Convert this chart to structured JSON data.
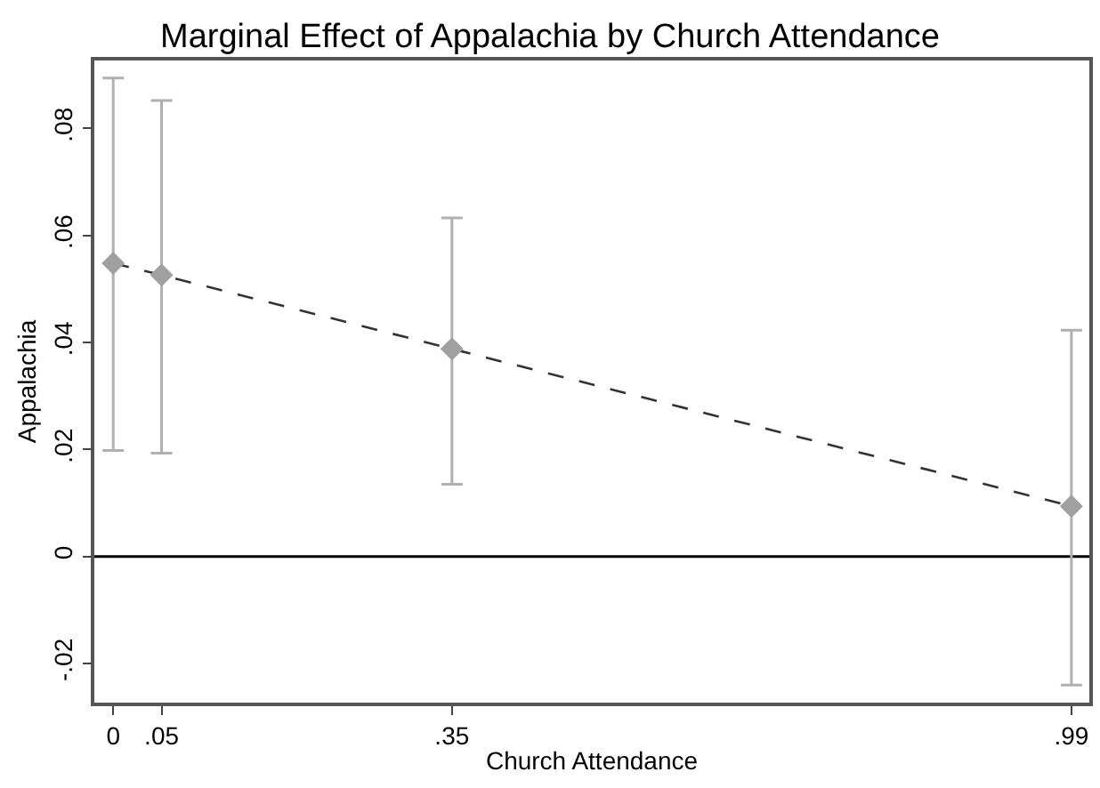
{
  "chart_data": {
    "type": "scatter",
    "title": "Marginal Effect of Appalachia by Church Attendance",
    "xlabel": "Church Attendance",
    "ylabel": "Appalachia",
    "x": [
      0,
      0.05,
      0.35,
      0.99
    ],
    "series": [
      {
        "type": "line",
        "color": "#333333",
        "values": [
          0.0548,
          0.0526,
          0.0388,
          0.0094
        ],
        "line_style": "dashed",
        "marker": "none"
      },
      {
        "color": "#a0a0a0",
        "values": [
          0.0548,
          0.0526,
          0.0388,
          0.0094
        ],
        "marker": "diamond",
        "errors": [
          [
            0.0198,
            0.0894
          ],
          [
            0.0193,
            0.0852
          ],
          [
            0.0135,
            0.0633
          ],
          [
            -0.024,
            0.0423
          ]
        ]
      }
    ],
    "xlim": [
      -0.0195,
      1.0085
    ],
    "xticks": [
      0,
      {
        "value": 0.05,
        "label": ".05"
      },
      {
        "value": 0.35,
        "label": ".35"
      },
      {
        "value": 0.99,
        "label": ".99"
      }
    ],
    "ylim": [
      -0.0273,
      0.0927
    ],
    "yticks": [
      {
        "value": -0.02,
        "label": "-.02"
      },
      0,
      {
        "value": 0.02,
        "label": ".02"
      },
      {
        "value": 0.04,
        "label": ".04"
      },
      {
        "value": 0.06,
        "label": ".06"
      },
      {
        "value": 0.08,
        "label": ".08"
      }
    ],
    "ref_lines": [
      {
        "axis": "y",
        "value": 0,
        "color": "#000000"
      }
    ],
    "grid": false
  }
}
